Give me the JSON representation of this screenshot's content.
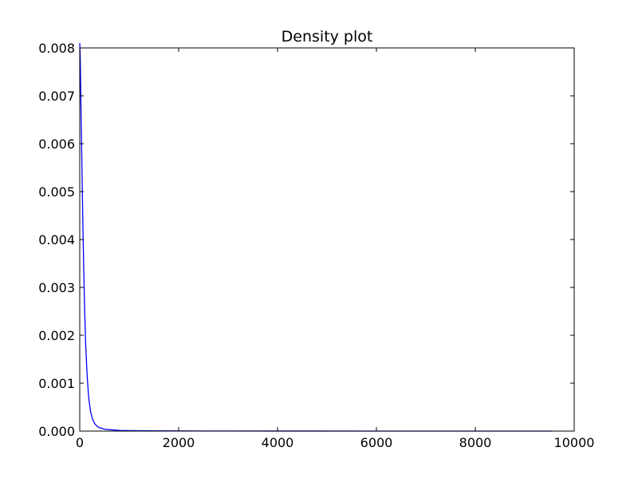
{
  "chart_data": {
    "type": "line",
    "title": "Density plot",
    "xlabel": "",
    "ylabel": "",
    "xlim": [
      0,
      10000
    ],
    "ylim": [
      0,
      0.008
    ],
    "x_ticks": [
      0,
      2000,
      4000,
      6000,
      8000,
      10000
    ],
    "x_tick_labels": [
      "0",
      "2000",
      "4000",
      "6000",
      "8000",
      "10000"
    ],
    "y_ticks": [
      0,
      0.001,
      0.002,
      0.003,
      0.004,
      0.005,
      0.006,
      0.007,
      0.008
    ],
    "y_tick_labels": [
      "0.000",
      "0.001",
      "0.002",
      "0.003",
      "0.004",
      "0.005",
      "0.006",
      "0.007",
      "0.008"
    ],
    "grid": false,
    "legend": "none",
    "series": [
      {
        "color": "#0000ff",
        "x": [
          0,
          10,
          20,
          40,
          60,
          80,
          100,
          120,
          150,
          180,
          220,
          260,
          300,
          350,
          400,
          500,
          600,
          800,
          1000,
          1500,
          2000,
          3000,
          4000,
          6000,
          8000,
          9550
        ],
        "y": [
          0.0081,
          0.0078,
          0.0071,
          0.0058,
          0.0045,
          0.0034,
          0.0025,
          0.0018,
          0.00115,
          0.0007,
          0.0004,
          0.00025,
          0.00016,
          0.0001,
          7e-05,
          4e-05,
          3e-05,
          1.5e-05,
          1e-05,
          5e-06,
          3e-06,
          2e-06,
          1e-06,
          5e-07,
          3e-07,
          1e-07
        ]
      }
    ]
  }
}
